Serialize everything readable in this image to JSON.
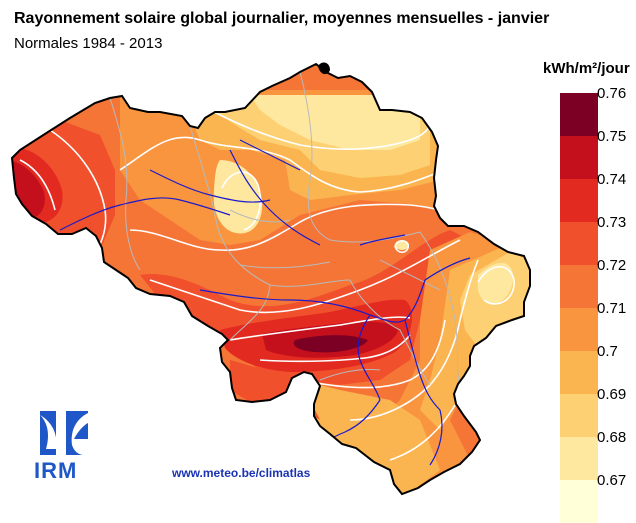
{
  "header": {
    "title": "Rayonnement solaire global journalier, moyennes mensuelles - janvier",
    "subtitle": "Normales 1984 - 2013"
  },
  "legend": {
    "unit": "kWh/m²/jour",
    "classes": [
      {
        "label": "0.76",
        "color": "#7c0023"
      },
      {
        "label": "0.75",
        "color": "#c4101c"
      },
      {
        "label": "0.74",
        "color": "#e22a21"
      },
      {
        "label": "0.73",
        "color": "#f0502c"
      },
      {
        "label": "0.72",
        "color": "#f57537"
      },
      {
        "label": "0.71",
        "color": "#f9953f"
      },
      {
        "label": "0.7",
        "color": "#fbb550"
      },
      {
        "label": "0.69",
        "color": "#fdd173"
      },
      {
        "label": "0.68",
        "color": "#fee89f"
      },
      {
        "label": "0.67",
        "color": "#ffffd8"
      }
    ]
  },
  "logo": {
    "text": "IRM"
  },
  "footer": {
    "website": "www.meteo.be/climatlas"
  }
}
